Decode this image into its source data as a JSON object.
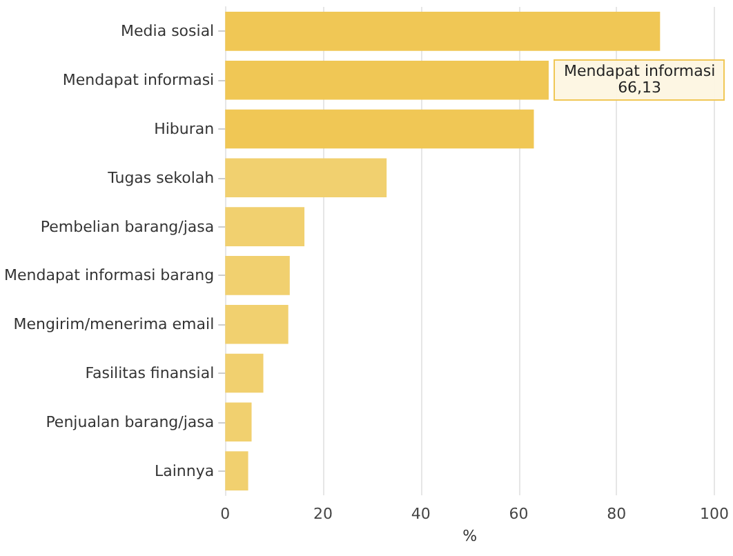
{
  "chart_data": {
    "type": "bar",
    "orientation": "horizontal",
    "xlabel": "%",
    "categories": [
      "Media sosial",
      "Mendapat informasi",
      "Hiburan",
      "Tugas sekolah",
      "Pembelian barang/jasa",
      "Mendapat informasi barang",
      "Mengirim/menerima email",
      "Fasilitas finansial",
      "Penjualan barang/jasa",
      "Lainnya"
    ],
    "values": [
      88.9,
      66.13,
      63.1,
      33.0,
      16.2,
      13.2,
      12.9,
      7.8,
      5.4,
      4.7
    ],
    "colors": [
      "#f0c755",
      "#f0c755",
      "#f0c755",
      "#f1d06f",
      "#f1d06f",
      "#f1d06f",
      "#f1d06f",
      "#f1d06f",
      "#f1d06f",
      "#f1d06f"
    ],
    "xlim": [
      0,
      100
    ],
    "xticks": [
      0,
      20,
      40,
      60,
      80,
      100
    ],
    "grid": "x",
    "annotations": [
      {
        "text": "Mendapat informasi\n66,13",
        "x": 66.13,
        "y": "Mendapat informasi"
      }
    ]
  }
}
